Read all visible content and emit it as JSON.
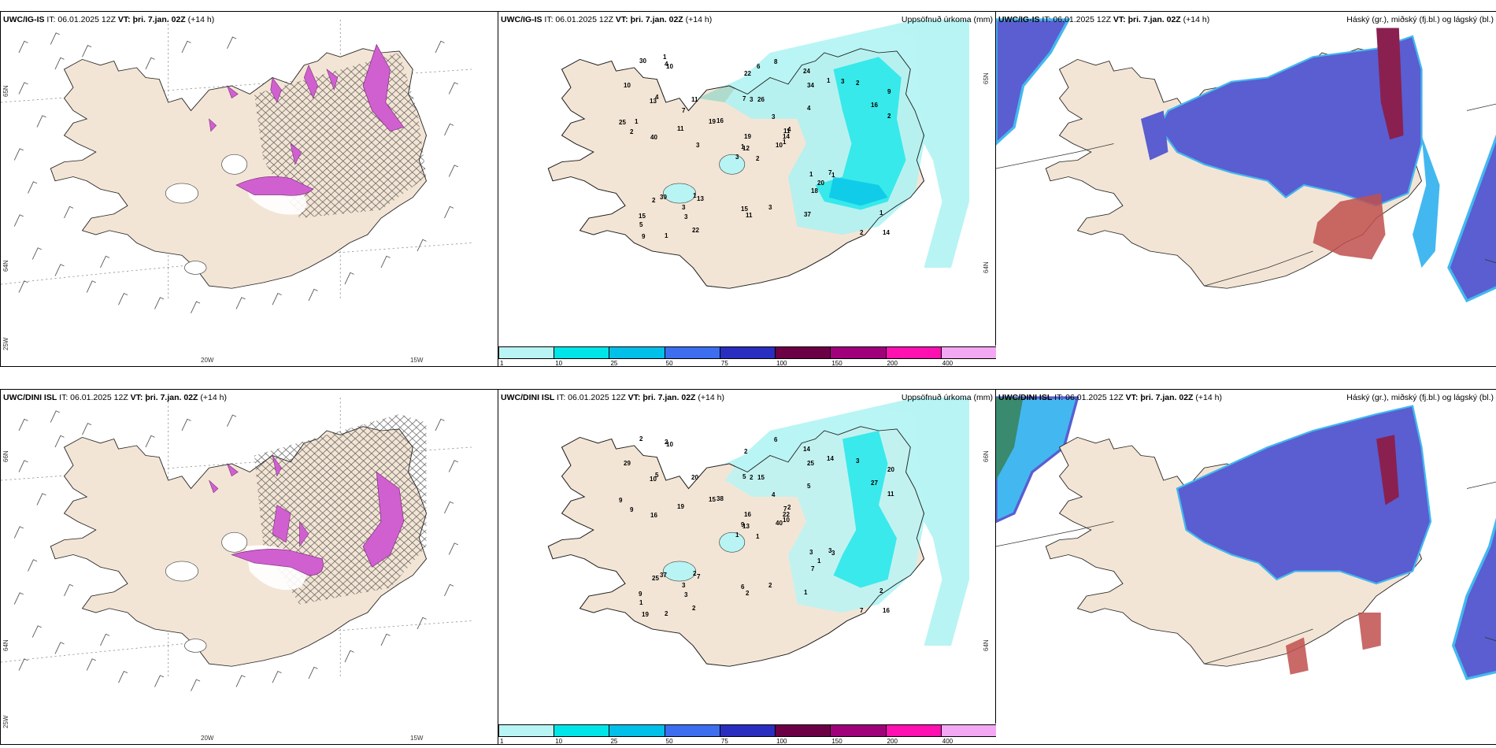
{
  "top": {
    "left": {
      "model": "UWC/IG-IS",
      "it_label": "IT: 06.01.2025 12Z",
      "vt_label": "VT: þri. 7.jan. 02Z",
      "lead": "(+14 h)",
      "lat_labels": [
        "65N",
        "64N",
        "25W"
      ],
      "lon_labels": [
        "20W",
        "15W"
      ]
    },
    "mid": {
      "model": "UWC/IG-IS",
      "it_label": "IT: 06.01.2025 12Z",
      "vt_label": "VT: þri. 7.jan. 02Z",
      "lead": "(+14 h)",
      "title": "Uppsöfnuð úrkoma (mm)",
      "lat_labels": [
        "65N",
        "64N"
      ],
      "values": [
        "2",
        "13",
        "12",
        "15",
        "11",
        "13",
        "24",
        "26",
        "34",
        "10",
        "10",
        "14",
        "40",
        "9",
        "3",
        "4",
        "1",
        "7",
        "3",
        "39",
        "16",
        "5",
        "3",
        "3",
        "4",
        "1",
        "4",
        "22",
        "2",
        "1",
        "2",
        "1",
        "15",
        "19",
        "11",
        "1",
        "1",
        "2",
        "1",
        "7",
        "8",
        "19",
        "11",
        "18",
        "22",
        "25",
        "14",
        "9",
        "11",
        "1",
        "2",
        "16",
        "10",
        "20",
        "37",
        "3",
        "4",
        "30",
        "3",
        "2",
        "6",
        "3",
        "1",
        "7",
        "3",
        "1"
      ]
    },
    "right": {
      "model": "UWC/IG-IS",
      "it_label": "IT: 06.01.2025 12Z",
      "vt_label": "VT: þri. 7.jan. 02Z",
      "lead": "(+14 h)",
      "title": "Háský (gr.), miðský (fj.bl.) og lágský (bl.)"
    }
  },
  "bottom": {
    "left": {
      "model": "UWC/DINI ISL",
      "it_label": "IT: 06.01.2025 12Z",
      "vt_label": "VT: þri. 7.jan. 02Z",
      "lead": "(+14 h)",
      "lat_labels": [
        "66N",
        "64N",
        "25W"
      ],
      "lon_labels": [
        "20W",
        "15W"
      ]
    },
    "mid": {
      "model": "UWC/DINI ISL",
      "it_label": "IT: 06.01.2025 12Z",
      "vt_label": "VT: þri. 7.jan. 02Z",
      "lead": "(+14 h)",
      "title": "Uppsöfnuð úrkoma (mm)",
      "lat_labels": [
        "66N",
        "64N"
      ],
      "values": [
        "1",
        "10",
        "13",
        "9",
        "7",
        "7",
        "14",
        "15",
        "25",
        "40",
        "10",
        "16",
        "16",
        "20",
        "1",
        "5",
        "2",
        "5",
        "4",
        "37",
        "38",
        "1",
        "3",
        "2",
        "2",
        "3",
        "5",
        "2",
        "9",
        "3",
        "11",
        "9",
        "6",
        "16",
        "20",
        "14",
        "2",
        "7",
        "2",
        "3",
        "6",
        "15",
        "19",
        "7",
        "2",
        "9",
        "22",
        "19",
        "2",
        "10",
        "25",
        "27",
        "29",
        "1",
        "1",
        "3",
        "2",
        "2",
        "2",
        "3"
      ]
    },
    "right": {
      "model": "UWC/DINI ISL",
      "it_label": "IT: 06.01.2025 12Z",
      "vt_label": "VT: þri. 7.jan. 02Z",
      "lead": "(+14 h)",
      "title": "Háský (gr.), miðský (fj.bl.) og lágský (bl.)"
    }
  },
  "colorbar": {
    "labels": [
      "1",
      "10",
      "25",
      "50",
      "75",
      "100",
      "150",
      "200",
      "400"
    ],
    "colors": [
      "#b8f4f4",
      "#00e5e8",
      "#00bfe8",
      "#3d6ef0",
      "#2a2ec0",
      "#6b0045",
      "#a0007a",
      "#ff10b0",
      "#f2a8f2"
    ]
  },
  "colors": {
    "land": "#f3e5d5",
    "precip_light": "#b8f4f4",
    "precip_mid": "#00e5e8",
    "cloud_low": "#5a5ed0",
    "cloud_edge": "#43b8f0",
    "cloud_high": "#c0504d",
    "icing": "#d060d0"
  }
}
